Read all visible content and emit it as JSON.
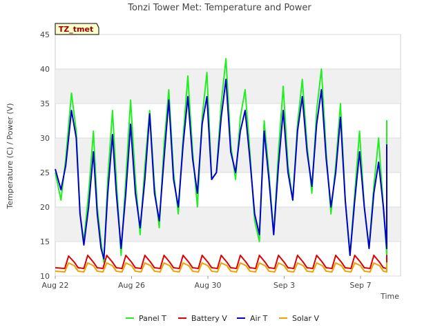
{
  "chart_data": {
    "type": "line",
    "title": "Tonzi Tower Met: Temperature and Power",
    "xlabel": "Time",
    "ylabel": "Temperature (C) / Power (V)",
    "tag": "TZ_tmet",
    "x_ticks": [
      "Aug 22",
      "Aug 26",
      "Aug 30",
      "Sep 3",
      "Sep 7"
    ],
    "x_tick_days": [
      0,
      4,
      8,
      12,
      16
    ],
    "x_range_days": [
      0,
      18
    ],
    "ylim": [
      10,
      45
    ],
    "y_ticks": [
      10,
      15,
      20,
      25,
      30,
      35,
      40,
      45
    ],
    "grid": "horizontal bands",
    "legend_position": "bottom",
    "series": [
      {
        "name": "Panel T",
        "color": "#22ee22",
        "points": [
          [
            0.0,
            25
          ],
          [
            0.3,
            21
          ],
          [
            0.55,
            27
          ],
          [
            0.85,
            36.5
          ],
          [
            1.1,
            31
          ],
          [
            1.3,
            19
          ],
          [
            1.5,
            15
          ],
          [
            1.75,
            22
          ],
          [
            2.0,
            31
          ],
          [
            2.2,
            20
          ],
          [
            2.4,
            15
          ],
          [
            2.55,
            12
          ],
          [
            2.75,
            24
          ],
          [
            3.0,
            34
          ],
          [
            3.2,
            24
          ],
          [
            3.45,
            13
          ],
          [
            3.7,
            24
          ],
          [
            3.95,
            35.5
          ],
          [
            4.2,
            24
          ],
          [
            4.45,
            16
          ],
          [
            4.7,
            26
          ],
          [
            4.95,
            34
          ],
          [
            5.2,
            23
          ],
          [
            5.45,
            17
          ],
          [
            5.7,
            29
          ],
          [
            5.95,
            37
          ],
          [
            6.2,
            25
          ],
          [
            6.45,
            19
          ],
          [
            6.7,
            30
          ],
          [
            6.95,
            39
          ],
          [
            7.2,
            28
          ],
          [
            7.45,
            20
          ],
          [
            7.7,
            33
          ],
          [
            7.95,
            39.5
          ],
          [
            8.2,
            24
          ],
          [
            8.45,
            25
          ],
          [
            8.7,
            35
          ],
          [
            8.95,
            41.5
          ],
          [
            9.2,
            29
          ],
          [
            9.45,
            24
          ],
          [
            9.7,
            33
          ],
          [
            9.95,
            37
          ],
          [
            10.2,
            28
          ],
          [
            10.45,
            18
          ],
          [
            10.7,
            15
          ],
          [
            10.95,
            32.5
          ],
          [
            11.2,
            25
          ],
          [
            11.45,
            16
          ],
          [
            11.7,
            28
          ],
          [
            11.95,
            37.5
          ],
          [
            12.2,
            26
          ],
          [
            12.45,
            21
          ],
          [
            12.7,
            32
          ],
          [
            12.95,
            38.5
          ],
          [
            13.2,
            29
          ],
          [
            13.45,
            22
          ],
          [
            13.7,
            34
          ],
          [
            13.95,
            40
          ],
          [
            14.2,
            28
          ],
          [
            14.45,
            19
          ],
          [
            14.7,
            26
          ],
          [
            14.95,
            35
          ],
          [
            15.2,
            21
          ],
          [
            15.45,
            13
          ],
          [
            15.7,
            22
          ],
          [
            15.95,
            31
          ],
          [
            16.2,
            20
          ],
          [
            16.45,
            14
          ],
          [
            16.7,
            23
          ],
          [
            16.95,
            30
          ],
          [
            17.2,
            20
          ],
          [
            17.45,
            13
          ],
          [
            17.7,
            23
          ],
          [
            17.95,
            32.5
          ],
          [
            18.2,
            17.5
          ]
        ]
      },
      {
        "name": "Battery V",
        "color": "#dd0000",
        "points": [
          [
            0.0,
            11.2
          ],
          [
            0.5,
            11.1
          ],
          [
            0.7,
            12.9
          ],
          [
            1.0,
            12.0
          ],
          [
            1.2,
            11.2
          ],
          [
            1.5,
            11.1
          ],
          [
            1.7,
            13.0
          ],
          [
            2.0,
            12.0
          ],
          [
            2.2,
            11.2
          ],
          [
            2.5,
            11.1
          ],
          [
            2.7,
            13.0
          ],
          [
            3.0,
            12.0
          ],
          [
            3.2,
            11.2
          ],
          [
            3.5,
            11.1
          ],
          [
            3.7,
            13.0
          ],
          [
            4.0,
            12.0
          ],
          [
            4.2,
            11.2
          ],
          [
            4.5,
            11.1
          ],
          [
            4.7,
            13.0
          ],
          [
            5.0,
            12.0
          ],
          [
            5.2,
            11.2
          ],
          [
            5.5,
            11.1
          ],
          [
            5.7,
            13.0
          ],
          [
            6.0,
            12.0
          ],
          [
            6.2,
            11.2
          ],
          [
            6.5,
            11.1
          ],
          [
            6.7,
            13.0
          ],
          [
            7.0,
            12.0
          ],
          [
            7.2,
            11.2
          ],
          [
            7.5,
            11.1
          ],
          [
            7.7,
            13.0
          ],
          [
            8.0,
            12.0
          ],
          [
            8.2,
            11.2
          ],
          [
            8.5,
            11.1
          ],
          [
            8.7,
            13.0
          ],
          [
            9.0,
            12.0
          ],
          [
            9.2,
            11.2
          ],
          [
            9.5,
            11.1
          ],
          [
            9.7,
            13.0
          ],
          [
            10.0,
            12.0
          ],
          [
            10.2,
            11.2
          ],
          [
            10.5,
            11.1
          ],
          [
            10.7,
            13.0
          ],
          [
            11.0,
            12.0
          ],
          [
            11.2,
            11.2
          ],
          [
            11.5,
            11.1
          ],
          [
            11.7,
            13.0
          ],
          [
            12.0,
            12.0
          ],
          [
            12.2,
            11.2
          ],
          [
            12.5,
            11.1
          ],
          [
            12.7,
            13.0
          ],
          [
            13.0,
            12.0
          ],
          [
            13.2,
            11.2
          ],
          [
            13.5,
            11.1
          ],
          [
            13.7,
            13.0
          ],
          [
            14.0,
            12.0
          ],
          [
            14.2,
            11.2
          ],
          [
            14.5,
            11.1
          ],
          [
            14.7,
            13.0
          ],
          [
            15.0,
            12.0
          ],
          [
            15.2,
            11.2
          ],
          [
            15.5,
            11.1
          ],
          [
            15.7,
            13.0
          ],
          [
            16.0,
            12.0
          ],
          [
            16.2,
            11.2
          ],
          [
            16.5,
            11.1
          ],
          [
            16.7,
            13.0
          ],
          [
            17.0,
            12.0
          ],
          [
            17.2,
            11.2
          ],
          [
            17.5,
            11.1
          ],
          [
            17.7,
            13.0
          ],
          [
            18.0,
            12.0
          ],
          [
            18.2,
            11.2
          ]
        ]
      },
      {
        "name": "Air T",
        "color": "#0000cc",
        "points": [
          [
            0.0,
            25.5
          ],
          [
            0.3,
            22.5
          ],
          [
            0.55,
            26
          ],
          [
            0.85,
            34
          ],
          [
            1.1,
            30
          ],
          [
            1.3,
            19
          ],
          [
            1.5,
            14.5
          ],
          [
            1.75,
            20
          ],
          [
            2.0,
            28
          ],
          [
            2.2,
            19
          ],
          [
            2.4,
            14
          ],
          [
            2.55,
            12.5
          ],
          [
            2.75,
            22
          ],
          [
            3.0,
            30.5
          ],
          [
            3.2,
            22
          ],
          [
            3.45,
            14
          ],
          [
            3.7,
            22
          ],
          [
            3.95,
            32
          ],
          [
            4.2,
            22
          ],
          [
            4.45,
            17
          ],
          [
            4.7,
            24
          ],
          [
            4.95,
            33.5
          ],
          [
            5.2,
            22
          ],
          [
            5.45,
            18
          ],
          [
            5.7,
            27
          ],
          [
            5.95,
            35.5
          ],
          [
            6.2,
            24
          ],
          [
            6.45,
            20
          ],
          [
            6.7,
            29
          ],
          [
            6.95,
            36
          ],
          [
            7.2,
            27
          ],
          [
            7.45,
            22
          ],
          [
            7.7,
            32
          ],
          [
            7.95,
            36
          ],
          [
            8.2,
            24
          ],
          [
            8.45,
            25
          ],
          [
            8.7,
            33
          ],
          [
            8.95,
            38.5
          ],
          [
            9.2,
            28
          ],
          [
            9.45,
            25
          ],
          [
            9.7,
            31
          ],
          [
            9.95,
            34
          ],
          [
            10.2,
            27
          ],
          [
            10.45,
            19
          ],
          [
            10.7,
            16
          ],
          [
            10.95,
            31
          ],
          [
            11.2,
            24
          ],
          [
            11.45,
            16
          ],
          [
            11.7,
            26
          ],
          [
            11.95,
            34
          ],
          [
            12.2,
            25
          ],
          [
            12.45,
            21
          ],
          [
            12.7,
            31
          ],
          [
            12.95,
            36
          ],
          [
            13.2,
            28
          ],
          [
            13.45,
            23
          ],
          [
            13.7,
            32
          ],
          [
            13.95,
            37
          ],
          [
            14.2,
            27
          ],
          [
            14.45,
            20
          ],
          [
            14.7,
            25
          ],
          [
            14.95,
            33
          ],
          [
            15.2,
            21
          ],
          [
            15.45,
            13
          ],
          [
            15.7,
            21
          ],
          [
            15.95,
            28
          ],
          [
            16.2,
            20
          ],
          [
            16.45,
            14
          ],
          [
            16.7,
            22
          ],
          [
            16.95,
            26.5
          ],
          [
            17.2,
            20
          ],
          [
            17.45,
            14
          ],
          [
            17.7,
            22
          ],
          [
            17.95,
            29
          ],
          [
            18.2,
            18
          ]
        ]
      },
      {
        "name": "Solar V",
        "color": "#f0a000",
        "points": [
          [
            0.0,
            10.7
          ],
          [
            0.5,
            10.6
          ],
          [
            0.7,
            11.9
          ],
          [
            1.0,
            11.5
          ],
          [
            1.2,
            10.7
          ],
          [
            1.5,
            10.6
          ],
          [
            1.7,
            11.9
          ],
          [
            2.0,
            11.5
          ],
          [
            2.2,
            10.7
          ],
          [
            2.5,
            10.6
          ],
          [
            2.7,
            11.9
          ],
          [
            3.0,
            11.5
          ],
          [
            3.2,
            10.7
          ],
          [
            3.5,
            10.6
          ],
          [
            3.7,
            11.9
          ],
          [
            4.0,
            11.5
          ],
          [
            4.2,
            10.7
          ],
          [
            4.5,
            10.6
          ],
          [
            4.7,
            11.9
          ],
          [
            5.0,
            11.5
          ],
          [
            5.2,
            10.7
          ],
          [
            5.5,
            10.6
          ],
          [
            5.7,
            11.9
          ],
          [
            6.0,
            11.5
          ],
          [
            6.2,
            10.7
          ],
          [
            6.5,
            10.6
          ],
          [
            6.7,
            11.9
          ],
          [
            7.0,
            11.5
          ],
          [
            7.2,
            10.7
          ],
          [
            7.5,
            10.6
          ],
          [
            7.7,
            11.9
          ],
          [
            8.0,
            11.5
          ],
          [
            8.2,
            10.7
          ],
          [
            8.5,
            10.6
          ],
          [
            8.7,
            11.9
          ],
          [
            9.0,
            11.5
          ],
          [
            9.2,
            10.7
          ],
          [
            9.5,
            10.6
          ],
          [
            9.7,
            11.9
          ],
          [
            10.0,
            11.5
          ],
          [
            10.2,
            10.7
          ],
          [
            10.5,
            10.6
          ],
          [
            10.7,
            11.9
          ],
          [
            11.0,
            11.5
          ],
          [
            11.2,
            10.7
          ],
          [
            11.5,
            10.6
          ],
          [
            11.7,
            11.9
          ],
          [
            12.0,
            11.5
          ],
          [
            12.2,
            10.7
          ],
          [
            12.5,
            10.6
          ],
          [
            12.7,
            11.9
          ],
          [
            13.0,
            11.5
          ],
          [
            13.2,
            10.7
          ],
          [
            13.5,
            10.6
          ],
          [
            13.7,
            11.9
          ],
          [
            14.0,
            11.5
          ],
          [
            14.2,
            10.7
          ],
          [
            14.5,
            10.6
          ],
          [
            14.7,
            11.9
          ],
          [
            15.0,
            11.5
          ],
          [
            15.2,
            10.7
          ],
          [
            15.5,
            10.6
          ],
          [
            15.7,
            11.9
          ],
          [
            16.0,
            11.5
          ],
          [
            16.2,
            10.7
          ],
          [
            16.5,
            10.6
          ],
          [
            16.7,
            11.9
          ],
          [
            17.0,
            11.5
          ],
          [
            17.2,
            10.7
          ],
          [
            17.5,
            10.6
          ],
          [
            17.7,
            11.9
          ],
          [
            18.0,
            11.5
          ],
          [
            18.2,
            10.7
          ]
        ]
      }
    ]
  }
}
